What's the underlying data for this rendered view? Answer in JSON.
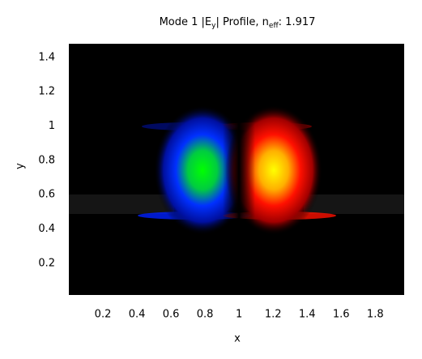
{
  "chart_data": {
    "type": "heatmap",
    "title": [
      "Mode 1 |E",
      "y",
      "| Profile, n",
      "eff",
      ": 1.917"
    ],
    "x_label": "x",
    "y_label": "y",
    "xlim": [
      0,
      1.97
    ],
    "ylim": [
      0.015,
      1.48
    ],
    "xticks": [
      0.2,
      0.4,
      0.6,
      0.8,
      1,
      1.2,
      1.4,
      1.6,
      1.8
    ],
    "yticks": [
      0.2,
      0.4,
      0.6,
      0.8,
      1,
      1.2,
      1.4
    ]
  }
}
